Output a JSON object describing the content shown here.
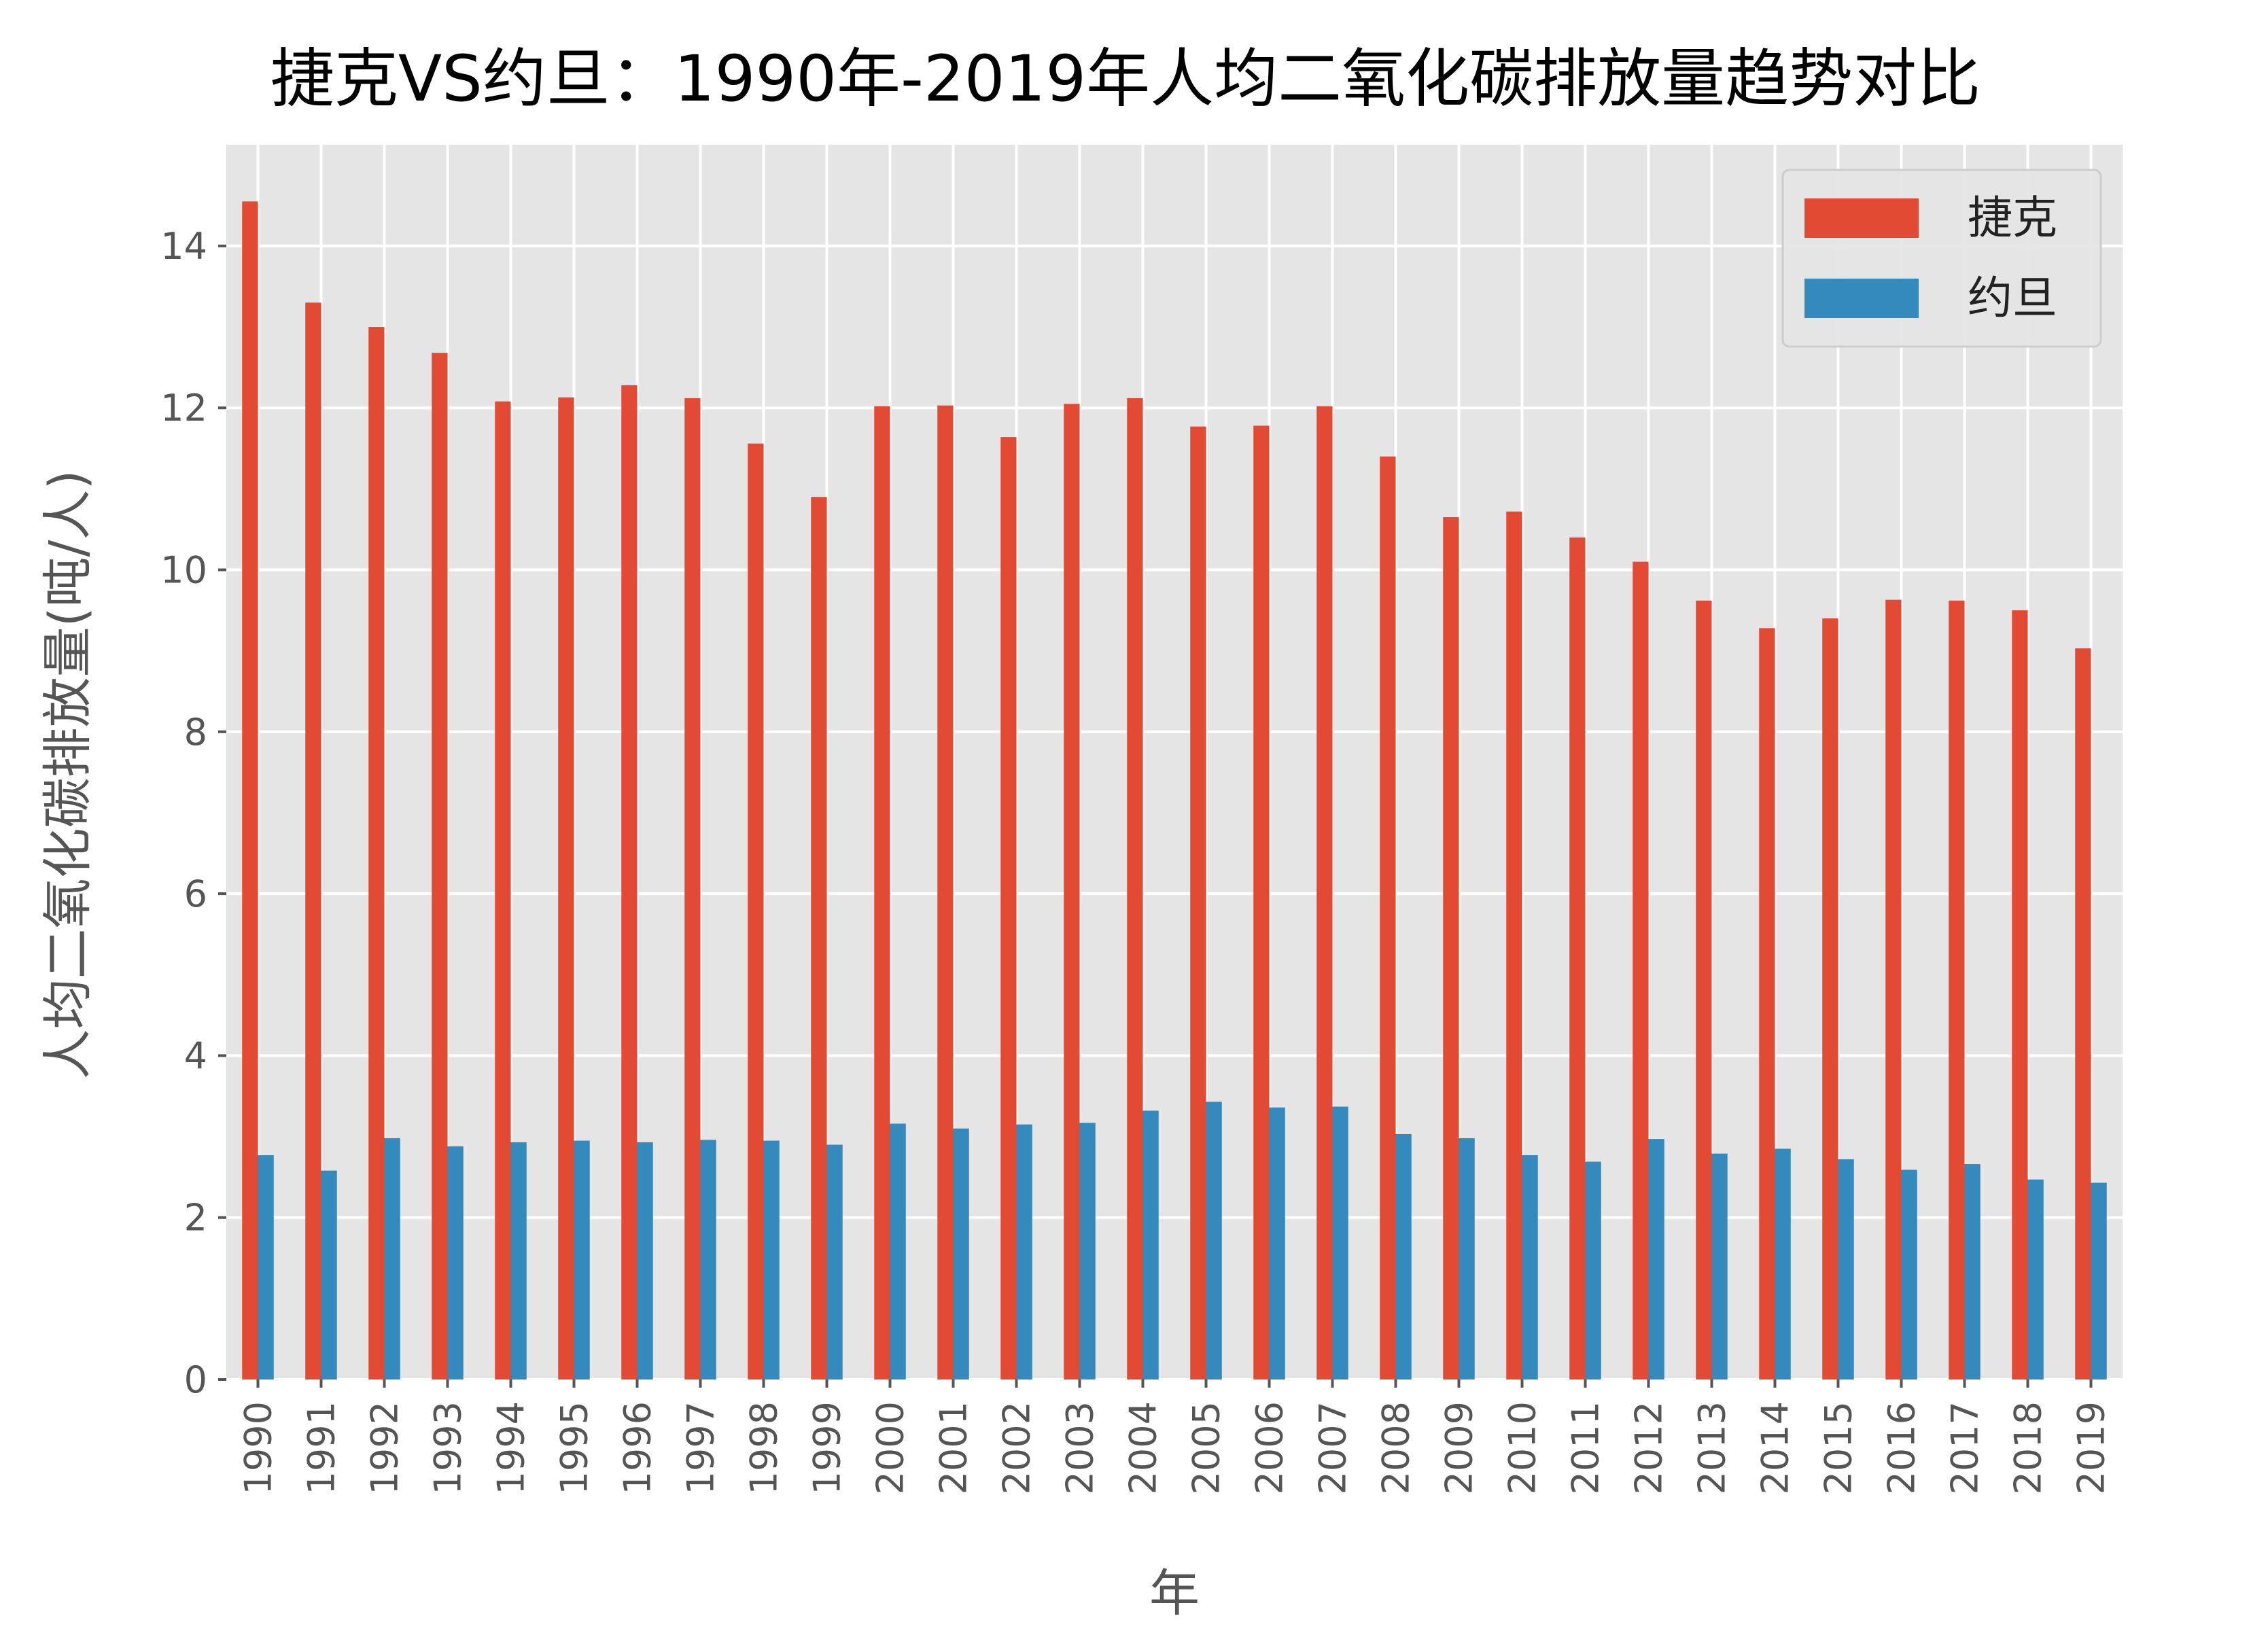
{
  "chart_data": {
    "type": "bar",
    "title": "捷克VS约旦：1990年-2019年人均二氧化碳排放量趋势对比",
    "xlabel": "年",
    "ylabel": "人均二氧化碳排放量(吨/人)",
    "categories": [
      "1990",
      "1991",
      "1992",
      "1993",
      "1994",
      "1995",
      "1996",
      "1997",
      "1998",
      "1999",
      "2000",
      "2001",
      "2002",
      "2003",
      "2004",
      "2005",
      "2006",
      "2007",
      "2008",
      "2009",
      "2010",
      "2011",
      "2012",
      "2013",
      "2014",
      "2015",
      "2016",
      "2017",
      "2018",
      "2019"
    ],
    "series": [
      {
        "name": "捷克",
        "color": "#E24A33",
        "values": [
          14.55,
          13.3,
          13.0,
          12.68,
          12.08,
          12.13,
          12.28,
          12.12,
          11.56,
          10.9,
          12.02,
          12.03,
          11.64,
          12.05,
          12.12,
          11.77,
          11.78,
          12.02,
          11.4,
          10.65,
          10.72,
          10.4,
          10.1,
          9.62,
          9.28,
          9.4,
          9.63,
          9.62,
          9.5,
          9.03
        ]
      },
      {
        "name": "约旦",
        "color": "#348ABD",
        "values": [
          2.77,
          2.58,
          2.98,
          2.88,
          2.93,
          2.95,
          2.93,
          2.96,
          2.95,
          2.9,
          3.16,
          3.1,
          3.15,
          3.17,
          3.32,
          3.43,
          3.36,
          3.37,
          3.03,
          2.98,
          2.77,
          2.69,
          2.97,
          2.79,
          2.85,
          2.72,
          2.59,
          2.66,
          2.47,
          2.43
        ]
      }
    ],
    "yticks": [
      "0",
      "2",
      "4",
      "6",
      "8",
      "10",
      "12",
      "14"
    ],
    "ylim": [
      0,
      15.25
    ],
    "grid": true,
    "legend": "top-right",
    "background": "#E5E5E5"
  }
}
